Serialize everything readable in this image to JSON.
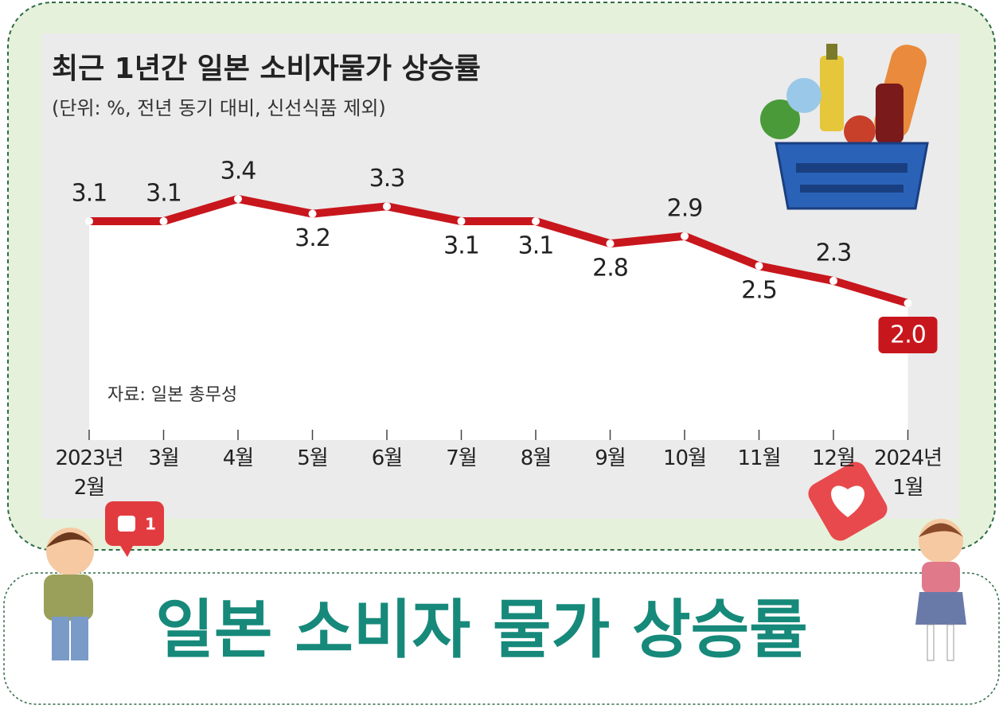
{
  "chart_data": {
    "type": "line",
    "title": "최근 1년간 일본 소비자물가 상승률",
    "subtitle": "(단위: %, 전년 동기 대비, 신선식품 제외)",
    "source": "자료: 일본 총무성",
    "categories": [
      "2023년\n2월",
      "3월",
      "4월",
      "5월",
      "6월",
      "7월",
      "8월",
      "9월",
      "10월",
      "11월",
      "12월",
      "2024년\n1월"
    ],
    "values": [
      3.1,
      3.1,
      3.4,
      3.2,
      3.3,
      3.1,
      3.1,
      2.8,
      2.9,
      2.5,
      2.3,
      2.0
    ],
    "value_labels": [
      "3.1",
      "3.1",
      "3.4",
      "3.2",
      "3.3",
      "3.1",
      "3.1",
      "2.8",
      "2.9",
      "2.5",
      "2.3",
      "2.0"
    ],
    "color": "#c8161d"
  },
  "banner": {
    "title": "일본 소비자 물가 상승률",
    "like_count": 1
  }
}
